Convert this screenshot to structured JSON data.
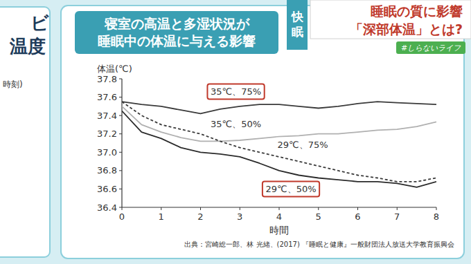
{
  "chart_data": {
    "type": "line",
    "title": "寝室の高温と多湿状況が\n睡眠中の体温に与える影響",
    "y_label": "体温(℃)",
    "x_label": "時間",
    "source": "出典：宮崎総一郎、林 光緒、(2017) 『睡眠と健康』一般財団法人放送大学教育振興会",
    "x": [
      0,
      0.5,
      1,
      1.5,
      2,
      2.5,
      3,
      3.5,
      4,
      4.5,
      5,
      5.5,
      6,
      6.5,
      7,
      7.5,
      8
    ],
    "series": [
      {
        "name": "35℃、75%",
        "color": "#3a3a3a",
        "line_style": "solid",
        "values": [
          37.55,
          37.52,
          37.5,
          37.46,
          37.42,
          37.47,
          37.5,
          37.52,
          37.52,
          37.5,
          37.48,
          37.5,
          37.53,
          37.55,
          37.54,
          37.53,
          37.52
        ]
      },
      {
        "name": "35℃、50%",
        "color": "#b0b0b0",
        "line_style": "solid",
        "values": [
          37.5,
          37.3,
          37.22,
          37.16,
          37.12,
          37.12,
          37.13,
          37.15,
          37.17,
          37.18,
          37.2,
          37.2,
          37.22,
          37.24,
          37.25,
          37.28,
          37.33
        ]
      },
      {
        "name": "29℃、75%",
        "color": "#3a3a3a",
        "line_style": "dashed",
        "values": [
          37.55,
          37.4,
          37.3,
          37.25,
          37.2,
          37.12,
          37.05,
          37.0,
          36.95,
          36.9,
          36.85,
          36.8,
          36.75,
          36.72,
          36.68,
          36.68,
          36.72
        ]
      },
      {
        "name": "29℃、50%",
        "color": "#2a2a2a",
        "line_style": "solid",
        "values": [
          37.45,
          37.22,
          37.15,
          37.05,
          37.0,
          36.98,
          36.95,
          36.88,
          36.8,
          36.75,
          36.72,
          36.7,
          36.68,
          36.68,
          36.66,
          36.62,
          36.68
        ]
      }
    ],
    "xlim": [
      0,
      8
    ],
    "xticks": [
      0,
      1,
      2,
      3,
      4,
      5,
      6,
      7,
      8
    ],
    "ylim": [
      36.4,
      37.8
    ],
    "yticks": [
      36.4,
      36.6,
      36.8,
      {
        "value": 37,
        "label": "37.0"
      },
      37.2,
      37.4,
      37.6,
      37.8
    ],
    "grid": false
  },
  "screen": {
    "badge": "快眠",
    "headline": "睡眠の質に影響",
    "subheadline": "「深部体温」とは?",
    "hashtag": "#しらないライフ",
    "left_panel": [
      "ビ",
      "温度",
      "時刻)"
    ]
  }
}
